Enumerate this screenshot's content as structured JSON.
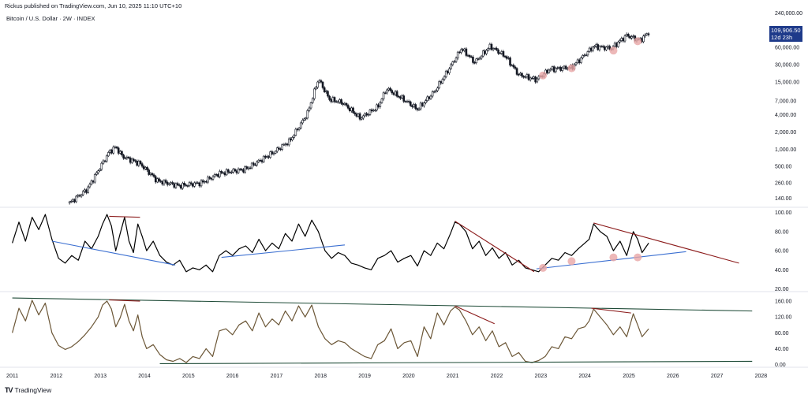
{
  "header": {
    "publisher": "Rickus published on TradingView.com, Jun 10, 2025 11:10 UTC+10",
    "symbol": "Bitcoin / U.S. Dollar · 2W · INDEX"
  },
  "footer": {
    "logo": "TV",
    "brand": "TradingView"
  },
  "price_tag": {
    "price": "109,906.50",
    "countdown": "12d 23h",
    "color": "#1e3a8a"
  },
  "colors": {
    "candle": "#131722",
    "indicator1": "#000000",
    "indicator2": "#6b5636",
    "trend_blue": "#3b6fd1",
    "trend_red": "#8b1a1a",
    "trend_green": "#1d4a36",
    "marker": "#e8a6a6"
  },
  "chart_data": [
    {
      "type": "candlestick",
      "title": "Bitcoin / U.S. Dollar · 2W · INDEX",
      "y_scale": "log",
      "y_ticks": [
        "240,000.00",
        "120,000.00",
        "60,000.00",
        "30,000.00",
        "15,000.00",
        "7,000.00",
        "4,000.00",
        "2,000.00",
        "1,000.00",
        "500.00",
        "260.00",
        "140.00"
      ],
      "y_tick_values": [
        240000,
        120000,
        60000,
        30000,
        15000,
        7000,
        4000,
        2000,
        1000,
        500,
        260,
        140
      ],
      "ylim": [
        100,
        260000
      ],
      "xlim": [
        2010.9,
        2028.1
      ],
      "anchors": [
        [
          2012.3,
          115
        ],
        [
          2012.7,
          200
        ],
        [
          2013.2,
          900
        ],
        [
          2013.35,
          1100
        ],
        [
          2013.5,
          750
        ],
        [
          2013.9,
          560
        ],
        [
          2014.3,
          280
        ],
        [
          2014.8,
          230
        ],
        [
          2015.3,
          260
        ],
        [
          2015.7,
          380
        ],
        [
          2016.3,
          450
        ],
        [
          2016.9,
          850
        ],
        [
          2017.3,
          1400
        ],
        [
          2017.7,
          4200
        ],
        [
          2017.95,
          17000
        ],
        [
          2018.2,
          7500
        ],
        [
          2018.5,
          6500
        ],
        [
          2018.9,
          3500
        ],
        [
          2019.3,
          5500
        ],
        [
          2019.5,
          11500
        ],
        [
          2019.9,
          7300
        ],
        [
          2020.2,
          5000
        ],
        [
          2020.6,
          10500
        ],
        [
          2020.95,
          28000
        ],
        [
          2021.2,
          58000
        ],
        [
          2021.5,
          33000
        ],
        [
          2021.85,
          63000
        ],
        [
          2022.2,
          42000
        ],
        [
          2022.5,
          20000
        ],
        [
          2022.9,
          16500
        ],
        [
          2023.2,
          25000
        ],
        [
          2023.7,
          27000
        ],
        [
          2024.2,
          63000
        ],
        [
          2024.6,
          58000
        ],
        [
          2024.95,
          98000
        ],
        [
          2025.25,
          80000
        ],
        [
          2025.45,
          109900
        ]
      ],
      "last_price": 109906.5,
      "markers": [
        {
          "x": 2023.05,
          "y": 19500
        },
        {
          "x": 2023.7,
          "y": 26000
        },
        {
          "x": 2024.65,
          "y": 53000
        },
        {
          "x": 2025.2,
          "y": 77000
        }
      ]
    },
    {
      "type": "line",
      "y_ticks": [
        "100.00",
        "80.00",
        "60.00",
        "40.00",
        "20.00"
      ],
      "y_tick_values": [
        100,
        80,
        60,
        40,
        20
      ],
      "ylim": [
        18,
        103
      ],
      "series": [
        {
          "x": [
            2011.0,
            2011.15,
            2011.3,
            2011.45,
            2011.6,
            2011.75,
            2011.9,
            2012.05,
            2012.2,
            2012.35,
            2012.5,
            2012.65,
            2012.8,
            2012.95,
            2013.05,
            2013.15,
            2013.25,
            2013.35,
            2013.45,
            2013.55,
            2013.65,
            2013.75,
            2013.85,
            2013.95,
            2014.05,
            2014.2,
            2014.35,
            2014.5,
            2014.65,
            2014.8,
            2014.95,
            2015.1,
            2015.25,
            2015.4,
            2015.55,
            2015.7,
            2015.85,
            2016.0,
            2016.15,
            2016.3,
            2016.45,
            2016.6,
            2016.75,
            2016.9,
            2017.05,
            2017.2,
            2017.35,
            2017.5,
            2017.65,
            2017.8,
            2017.95,
            2018.1,
            2018.25,
            2018.4,
            2018.55,
            2018.7,
            2018.85,
            2019.0,
            2019.15,
            2019.3,
            2019.45,
            2019.6,
            2019.75,
            2019.9,
            2020.05,
            2020.2,
            2020.35,
            2020.5,
            2020.65,
            2020.8,
            2020.95,
            2021.05,
            2021.15,
            2021.3,
            2021.45,
            2021.6,
            2021.75,
            2021.9,
            2022.05,
            2022.2,
            2022.35,
            2022.5,
            2022.65,
            2022.8,
            2022.95,
            2023.1,
            2023.25,
            2023.4,
            2023.55,
            2023.7,
            2023.85,
            2024.0,
            2024.1,
            2024.2,
            2024.35,
            2024.5,
            2024.65,
            2024.8,
            2024.95,
            2025.1,
            2025.2,
            2025.3,
            2025.45
          ],
          "values": [
            68,
            90,
            70,
            95,
            82,
            98,
            72,
            52,
            47,
            55,
            50,
            70,
            62,
            75,
            88,
            98,
            86,
            60,
            78,
            95,
            70,
            58,
            88,
            75,
            60,
            70,
            55,
            48,
            45,
            50,
            38,
            42,
            40,
            45,
            38,
            55,
            60,
            55,
            62,
            65,
            58,
            72,
            60,
            68,
            62,
            78,
            70,
            88,
            75,
            92,
            80,
            60,
            52,
            58,
            55,
            47,
            45,
            42,
            40,
            52,
            55,
            60,
            48,
            52,
            55,
            44,
            60,
            55,
            68,
            62,
            78,
            90,
            88,
            80,
            62,
            70,
            55,
            63,
            52,
            58,
            45,
            50,
            42,
            40,
            38,
            45,
            52,
            50,
            58,
            55,
            62,
            68,
            72,
            88,
            80,
            75,
            60,
            70,
            55,
            80,
            72,
            58,
            68
          ]
        }
      ],
      "trendlines": [
        {
          "color": "blue",
          "from": [
            2011.9,
            70
          ],
          "to": [
            2014.7,
            45
          ]
        },
        {
          "color": "red",
          "from": [
            2013.2,
            96
          ],
          "to": [
            2013.9,
            95
          ]
        },
        {
          "color": "blue",
          "from": [
            2015.75,
            53
          ],
          "to": [
            2018.55,
            66
          ]
        },
        {
          "color": "red",
          "from": [
            2021.05,
            91
          ],
          "to": [
            2022.85,
            38
          ]
        },
        {
          "color": "blue",
          "from": [
            2022.9,
            41
          ],
          "to": [
            2026.3,
            59
          ]
        },
        {
          "color": "red",
          "from": [
            2024.2,
            89
          ],
          "to": [
            2027.5,
            47
          ]
        }
      ],
      "markers": [
        {
          "x": 2023.05,
          "y": 42
        },
        {
          "x": 2023.7,
          "y": 49
        },
        {
          "x": 2024.65,
          "y": 53
        },
        {
          "x": 2025.2,
          "y": 53
        }
      ]
    },
    {
      "type": "line",
      "y_ticks": [
        "160.00",
        "120.00",
        "80.00",
        "40.00",
        "0.00"
      ],
      "y_tick_values": [
        160,
        120,
        80,
        40,
        0
      ],
      "ylim": [
        -5,
        178
      ],
      "series": [
        {
          "x": [
            2011.0,
            2011.15,
            2011.3,
            2011.45,
            2011.6,
            2011.75,
            2011.9,
            2012.05,
            2012.2,
            2012.35,
            2012.5,
            2012.65,
            2012.8,
            2012.95,
            2013.05,
            2013.15,
            2013.25,
            2013.35,
            2013.45,
            2013.55,
            2013.65,
            2013.75,
            2013.85,
            2013.95,
            2014.05,
            2014.2,
            2014.35,
            2014.5,
            2014.65,
            2014.8,
            2014.95,
            2015.1,
            2015.25,
            2015.4,
            2015.55,
            2015.7,
            2015.85,
            2016.0,
            2016.15,
            2016.3,
            2016.45,
            2016.6,
            2016.75,
            2016.9,
            2017.05,
            2017.2,
            2017.35,
            2017.5,
            2017.65,
            2017.8,
            2017.95,
            2018.1,
            2018.25,
            2018.4,
            2018.55,
            2018.7,
            2018.85,
            2019.0,
            2019.15,
            2019.3,
            2019.45,
            2019.6,
            2019.75,
            2019.9,
            2020.05,
            2020.2,
            2020.35,
            2020.5,
            2020.65,
            2020.8,
            2020.95,
            2021.05,
            2021.15,
            2021.3,
            2021.45,
            2021.6,
            2021.75,
            2021.9,
            2022.05,
            2022.2,
            2022.35,
            2022.5,
            2022.65,
            2022.8,
            2022.95,
            2023.1,
            2023.25,
            2023.4,
            2023.55,
            2023.7,
            2023.85,
            2024.0,
            2024.1,
            2024.2,
            2024.35,
            2024.5,
            2024.65,
            2024.8,
            2024.95,
            2025.1,
            2025.2,
            2025.3,
            2025.45
          ],
          "values": [
            80,
            142,
            110,
            162,
            125,
            155,
            80,
            48,
            38,
            45,
            58,
            75,
            95,
            120,
            150,
            160,
            140,
            95,
            118,
            152,
            110,
            85,
            125,
            70,
            40,
            50,
            25,
            12,
            8,
            15,
            5,
            20,
            15,
            40,
            20,
            85,
            90,
            75,
            100,
            110,
            85,
            130,
            95,
            115,
            100,
            135,
            110,
            148,
            120,
            150,
            95,
            65,
            50,
            60,
            55,
            40,
            30,
            20,
            15,
            50,
            60,
            90,
            40,
            55,
            60,
            20,
            95,
            65,
            130,
            100,
            135,
            145,
            138,
            110,
            75,
            95,
            60,
            85,
            45,
            55,
            20,
            30,
            8,
            5,
            10,
            20,
            45,
            40,
            70,
            65,
            90,
            95,
            110,
            140,
            120,
            100,
            75,
            95,
            70,
            128,
            100,
            70,
            90
          ]
        }
      ],
      "trendlines": [
        {
          "color": "green",
          "from": [
            2011.0,
            168
          ],
          "to": [
            2027.8,
            135
          ]
        },
        {
          "color": "green",
          "from": [
            2014.35,
            2
          ],
          "to": [
            2027.8,
            8
          ]
        },
        {
          "color": "red",
          "from": [
            2013.2,
            163
          ],
          "to": [
            2013.9,
            160
          ]
        },
        {
          "color": "red",
          "from": [
            2021.05,
            148
          ],
          "to": [
            2021.95,
            103
          ]
        },
        {
          "color": "red",
          "from": [
            2024.15,
            142
          ],
          "to": [
            2025.05,
            130
          ]
        }
      ]
    }
  ],
  "x_axis": {
    "ticks": [
      "2011",
      "2012",
      "2013",
      "2014",
      "2015",
      "2016",
      "2017",
      "2018",
      "2019",
      "2020",
      "2021",
      "2022",
      "2023",
      "2024",
      "2025",
      "2026",
      "2027",
      "2028"
    ],
    "tick_values": [
      2011,
      2012,
      2013,
      2014,
      2015,
      2016,
      2017,
      2018,
      2019,
      2020,
      2021,
      2022,
      2023,
      2024,
      2025,
      2026,
      2027,
      2028
    ]
  }
}
